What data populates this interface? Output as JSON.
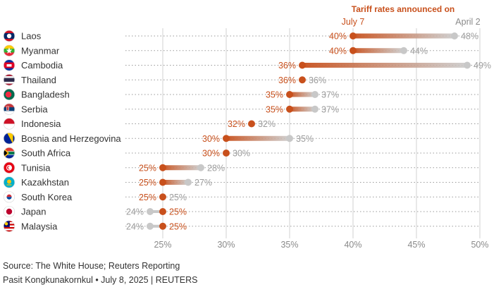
{
  "chart_data": {
    "type": "dot-range",
    "title": "Tariff rates announced on",
    "series": [
      {
        "name": "July 7",
        "color": "#c8501c"
      },
      {
        "name": "April 2",
        "color": "#c8c8c8"
      }
    ],
    "categories": [
      "Laos",
      "Myanmar",
      "Cambodia",
      "Thailand",
      "Bangladesh",
      "Serbia",
      "Indonesia",
      "Bosnia and Herzegovina",
      "South Africa",
      "Tunisia",
      "Kazakhstan",
      "South Korea",
      "Japan",
      "Malaysia"
    ],
    "rows": [
      {
        "country": "Laos",
        "flag": "laos-flag",
        "july7": 40,
        "april2": 48,
        "july7_label": "40%",
        "april2_label": "48%"
      },
      {
        "country": "Myanmar",
        "flag": "myanmar-flag",
        "july7": 40,
        "april2": 44,
        "july7_label": "40%",
        "april2_label": "44%"
      },
      {
        "country": "Cambodia",
        "flag": "cambodia-flag",
        "july7": 36,
        "april2": 49,
        "july7_label": "36%",
        "april2_label": "49%"
      },
      {
        "country": "Thailand",
        "flag": "thailand-flag",
        "july7": 36,
        "april2": 36,
        "july7_label": "36%",
        "april2_label": "36%"
      },
      {
        "country": "Bangladesh",
        "flag": "bangladesh-flag",
        "july7": 35,
        "april2": 37,
        "july7_label": "35%",
        "april2_label": "37%"
      },
      {
        "country": "Serbia",
        "flag": "serbia-flag",
        "july7": 35,
        "april2": 37,
        "july7_label": "35%",
        "april2_label": "37%"
      },
      {
        "country": "Indonesia",
        "flag": "indonesia-flag",
        "july7": 32,
        "april2": 32,
        "july7_label": "32%",
        "april2_label": "32%"
      },
      {
        "country": "Bosnia and Herzegovina",
        "flag": "bosnia-and-herzegovina-flag",
        "july7": 30,
        "april2": 35,
        "july7_label": "30%",
        "april2_label": "35%"
      },
      {
        "country": "South Africa",
        "flag": "south-africa-flag",
        "july7": 30,
        "april2": 30,
        "july7_label": "30%",
        "april2_label": "30%"
      },
      {
        "country": "Tunisia",
        "flag": "tunisia-flag",
        "july7": 25,
        "april2": 28,
        "july7_label": "25%",
        "april2_label": "28%"
      },
      {
        "country": "Kazakhstan",
        "flag": "kazakhstan-flag",
        "july7": 25,
        "april2": 27,
        "july7_label": "25%",
        "april2_label": "27%"
      },
      {
        "country": "South Korea",
        "flag": "south-korea-flag",
        "july7": 25,
        "april2": 25,
        "july7_label": "25%",
        "april2_label": "25%"
      },
      {
        "country": "Japan",
        "flag": "japan-flag",
        "july7": 25,
        "april2": 24,
        "july7_label": "25%",
        "april2_label": "24%"
      },
      {
        "country": "Malaysia",
        "flag": "malaysia-flag",
        "july7": 25,
        "april2": 24,
        "july7_label": "25%",
        "april2_label": "24%"
      }
    ],
    "x_ticks": [
      25,
      30,
      35,
      40,
      45,
      50
    ],
    "x_tick_labels": [
      "25%",
      "30%",
      "35%",
      "40%",
      "45%",
      "50%"
    ],
    "xlim": [
      25,
      50
    ],
    "xlabel": "",
    "ylabel": "",
    "grid": true
  },
  "colors": {
    "july7": "#c8501c",
    "april2": "#c8c8c8",
    "text": "#333333",
    "muted": "#8a8a8a",
    "grid": "#d0d0d0"
  },
  "footer": {
    "source": "Source: The White House; Reuters Reporting",
    "credit": "Pasit Kongkunakornkul • July 8, 2025 | REUTERS"
  }
}
